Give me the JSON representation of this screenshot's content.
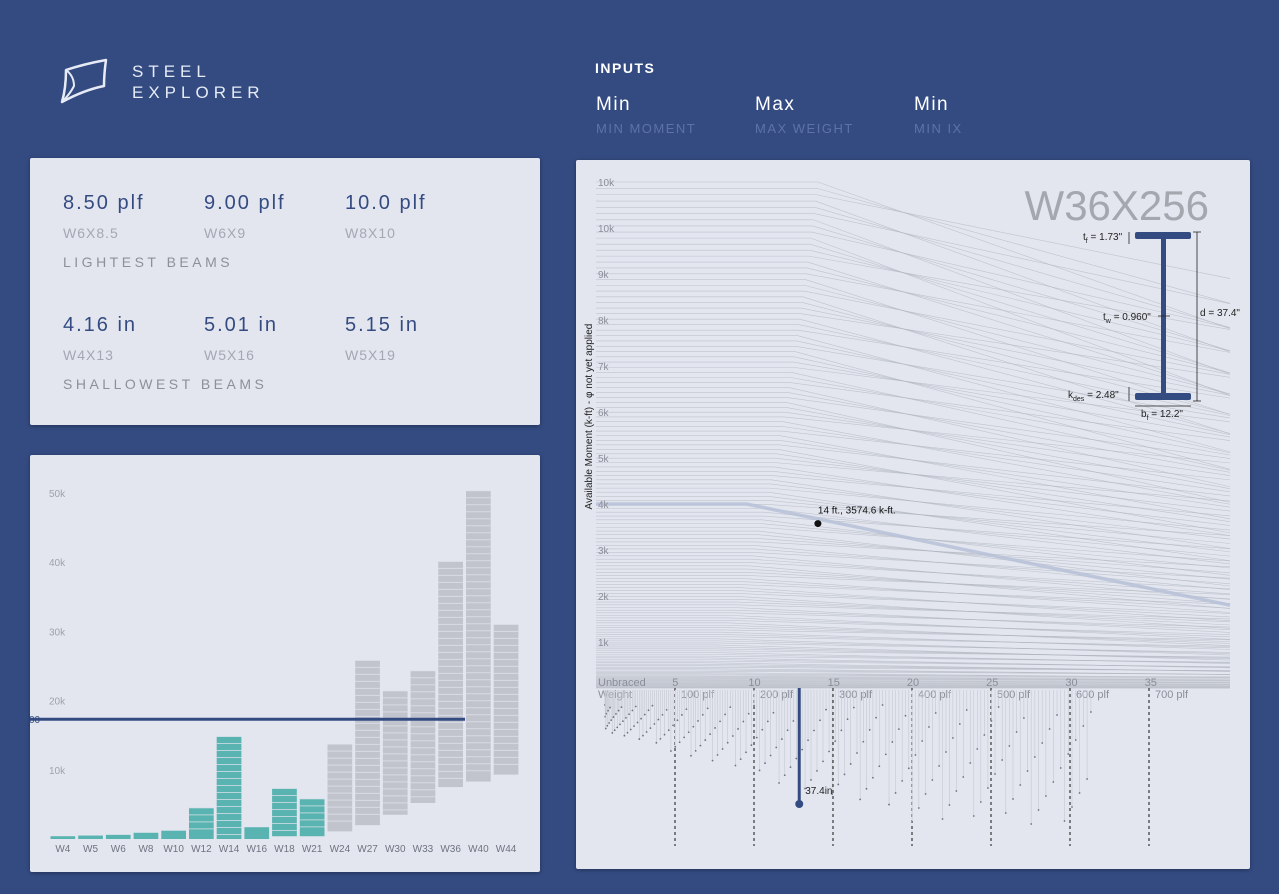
{
  "app": {
    "title_line1": "STEEL",
    "title_line2": "EXPLORER"
  },
  "inputs": {
    "title": "INPUTS",
    "fields": [
      {
        "value": "Min",
        "label": "MIN MOMENT"
      },
      {
        "value": "Max",
        "label": "MAX WEIGHT"
      },
      {
        "value": "Min",
        "label": "MIN IX"
      }
    ]
  },
  "lightest": {
    "items": [
      {
        "value": "8.50 plf",
        "name": "W6X8.5"
      },
      {
        "value": "9.00 plf",
        "name": "W6X9"
      },
      {
        "value": "10.0 plf",
        "name": "W8X10"
      }
    ],
    "caption": "LIGHTEST BEAMS"
  },
  "shallowest": {
    "items": [
      {
        "value": "4.16 in",
        "name": "W4X13"
      },
      {
        "value": "5.01 in",
        "name": "W5X16"
      },
      {
        "value": "5.15 in",
        "name": "W5X19"
      }
    ],
    "caption": "SHALLOWEST BEAMS"
  },
  "colors": {
    "background": "#344b82",
    "panel": "#e3e6ef",
    "accent": "#344b82",
    "teal": "#3aa7a2",
    "grey": "#b9bcc4"
  },
  "chart_data": [
    {
      "type": "bar",
      "ylim": [
        0,
        52000
      ],
      "yticks": [
        "10k",
        "20k",
        "30k",
        "40k",
        "50k"
      ],
      "ytick_values": [
        10000,
        20000,
        30000,
        40000,
        50000
      ],
      "reference_line": {
        "value": 17300,
        "label": "00"
      },
      "categories": [
        "W4",
        "W5",
        "W6",
        "W8",
        "W10",
        "W12",
        "W14",
        "W16",
        "W18",
        "W21",
        "W24",
        "W27",
        "W30",
        "W33",
        "W36",
        "W40",
        "W44"
      ],
      "series": [
        {
          "values_top": [
            400,
            500,
            600,
            900,
            1200,
            4500,
            14800,
            1700,
            7300,
            5800,
            13700,
            25800,
            21400,
            24300,
            40100,
            50300,
            31000
          ]
        },
        {
          "values_bottom": [
            0,
            0,
            0,
            0,
            0,
            0,
            0,
            0,
            400,
            400,
            1100,
            2000,
            3500,
            5200,
            7500,
            8300,
            9300
          ]
        }
      ],
      "highlighted_categories": [
        "W4",
        "W5",
        "W6",
        "W8",
        "W10",
        "W12",
        "W14",
        "W16",
        "W18",
        "W21"
      ]
    },
    {
      "type": "line",
      "ylabel": "Available Moment (k-ft) - φ not yet applied",
      "xlabel": "Unbraced",
      "xlim": [
        0,
        40
      ],
      "ylim": [
        0,
        11000
      ],
      "yticks": [
        "1k",
        "2k",
        "3k",
        "4k",
        "5k",
        "6k",
        "7k",
        "8k",
        "9k",
        "10k",
        "10k"
      ],
      "ytick_values": [
        1000,
        2000,
        3000,
        4000,
        5000,
        6000,
        7000,
        8000,
        9000,
        10000,
        11000
      ],
      "xticks": [
        "5",
        "10",
        "15",
        "20",
        "25",
        "30",
        "35"
      ],
      "xtick_values": [
        5,
        10,
        15,
        20,
        25,
        30,
        35
      ],
      "highlighted_series": {
        "name": "W36X256",
        "x": [
          0,
          9.5,
          40
        ],
        "y": [
          4000,
          4000,
          1800
        ]
      },
      "marker": {
        "x": 14,
        "y": 3574.6,
        "label": "14 ft., 3574.6 k-ft."
      },
      "section": {
        "name": "W36X256",
        "tf": "1.73\"",
        "tw": "0.960\"",
        "d": "d = 37.4\"",
        "kdes": "2.48\"",
        "bf": "12.2\""
      },
      "weight_axis": {
        "label": "Weight",
        "ticks": [
          "100 plf",
          "200 plf",
          "300 plf",
          "400 plf",
          "500 plf",
          "600 plf",
          "700 plf"
        ],
        "tick_values": [
          100,
          200,
          300,
          400,
          500,
          600,
          700
        ],
        "selected": {
          "weight": 256,
          "depth_label": "37.4in"
        }
      }
    }
  ]
}
